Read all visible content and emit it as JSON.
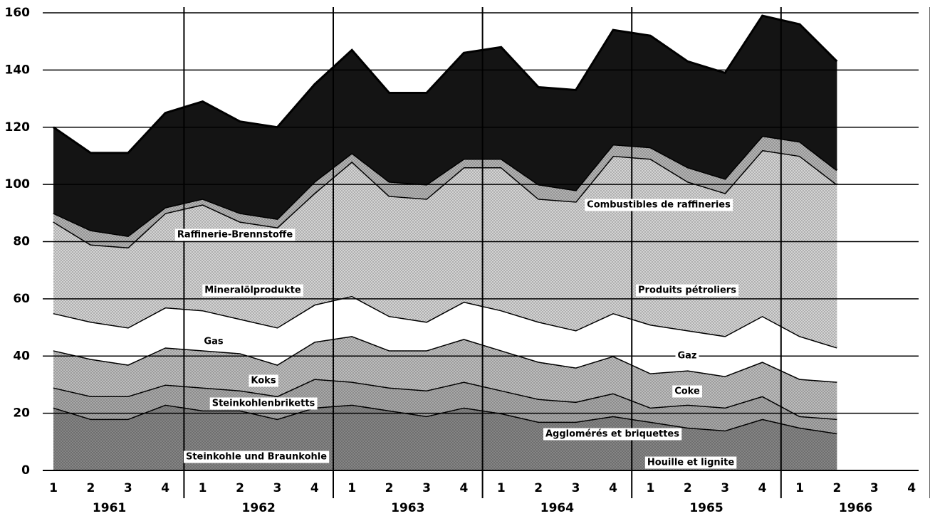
{
  "chart_data": {
    "type": "stacked_area",
    "categories": [
      "1",
      "2",
      "3",
      "4",
      "1",
      "2",
      "3",
      "4",
      "1",
      "2",
      "3",
      "4",
      "1",
      "2",
      "3",
      "4",
      "1",
      "2",
      "3",
      "4",
      "1",
      "2",
      "3",
      "4"
    ],
    "years": [
      "1961",
      "1962",
      "1963",
      "1964",
      "1965",
      "1966"
    ],
    "ylim": [
      0,
      160
    ],
    "yticks": [
      0,
      20,
      40,
      60,
      80,
      100,
      120,
      140,
      160
    ],
    "grid": true,
    "series": [
      {
        "name": "Steinkohle und Braunkohle",
        "name_fr": "Houille et lignite",
        "color": "#8c8c8c",
        "values": [
          22,
          18,
          18,
          23,
          21,
          21,
          18,
          22,
          23,
          21,
          19,
          22,
          20,
          17,
          17,
          19,
          17,
          15,
          14,
          18,
          15,
          13,
          null,
          null
        ]
      },
      {
        "name": "Steinkohlenbriketts",
        "name_fr": "Agglomérés et briquettes",
        "color": "#b0b0b0",
        "values": [
          7,
          8,
          8,
          7,
          8,
          7,
          8,
          10,
          8,
          8,
          9,
          9,
          8,
          8,
          7,
          8,
          5,
          8,
          8,
          8,
          4,
          5,
          null,
          null
        ]
      },
      {
        "name": "Koks",
        "name_fr": "Coke",
        "color": "#c6c6c6",
        "values": [
          13,
          13,
          11,
          13,
          13,
          13,
          11,
          13,
          16,
          13,
          14,
          15,
          14,
          13,
          12,
          13,
          12,
          12,
          11,
          12,
          13,
          13,
          null,
          null
        ]
      },
      {
        "name": "Gas",
        "name_fr": "Gaz",
        "color": "#ffffff",
        "values": [
          13,
          13,
          13,
          14,
          14,
          12,
          13,
          13,
          14,
          12,
          10,
          13,
          14,
          14,
          13,
          15,
          17,
          14,
          14,
          16,
          15,
          12,
          null,
          null
        ]
      },
      {
        "name": "Mineralölprodukte",
        "name_fr": "Produits pétroliers",
        "color": "#dedede",
        "values": [
          32,
          27,
          28,
          33,
          37,
          34,
          35,
          39,
          47,
          42,
          43,
          47,
          50,
          43,
          45,
          55,
          58,
          52,
          50,
          58,
          63,
          57,
          null,
          null
        ]
      },
      {
        "name": "Raffinerie-Brennstoffe",
        "name_fr": "Combustibles de raffineries",
        "color": "#bcbcbc",
        "values": [
          3,
          5,
          4,
          2,
          2,
          3,
          3,
          4,
          3,
          5,
          5,
          3,
          3,
          5,
          4,
          4,
          4,
          5,
          5,
          5,
          5,
          5,
          null,
          null
        ]
      },
      {
        "color": "#141414",
        "values": [
          30,
          27,
          29,
          33,
          34,
          32,
          32,
          34,
          36,
          31,
          32,
          37,
          39,
          34,
          35,
          40,
          39,
          37,
          37,
          42,
          41,
          38,
          null,
          null
        ]
      }
    ]
  }
}
